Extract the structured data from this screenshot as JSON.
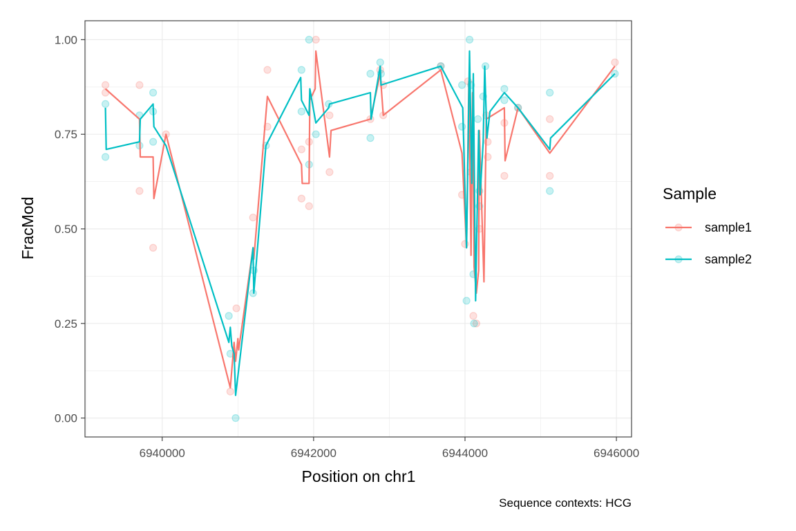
{
  "chart_data": {
    "type": "line",
    "xlabel": "Position on chr1",
    "ylabel": "FracMod",
    "caption": "Sequence contexts: HCG",
    "xlim": [
      6938980,
      6946200
    ],
    "ylim": [
      -0.05,
      1.05
    ],
    "x_ticks": [
      6940000,
      6942000,
      6944000,
      6946000
    ],
    "x_tick_labels": [
      "6940000",
      "6942000",
      "6944000",
      "6946000"
    ],
    "y_ticks": [
      0,
      0.25,
      0.5,
      0.75,
      1.0
    ],
    "y_tick_labels": [
      "0.00",
      "0.25",
      "0.50",
      "0.75",
      "1.00"
    ],
    "grid": true,
    "legend": {
      "title": "Sample",
      "placement": "right"
    },
    "series": [
      {
        "name": "sample1",
        "color": "#F8766D",
        "line": [
          [
            6939250,
            0.87
          ],
          [
            6939700,
            0.79
          ],
          [
            6939710,
            0.69
          ],
          [
            6939880,
            0.69
          ],
          [
            6939890,
            0.58
          ],
          [
            6940050,
            0.75
          ],
          [
            6940900,
            0.08
          ],
          [
            6940950,
            0.2
          ],
          [
            6940970,
            0.15
          ],
          [
            6941000,
            0.21
          ],
          [
            6941010,
            0.18
          ],
          [
            6941200,
            0.45
          ],
          [
            6941210,
            0.42
          ],
          [
            6941390,
            0.85
          ],
          [
            6941840,
            0.67
          ],
          [
            6941850,
            0.62
          ],
          [
            6941940,
            0.62
          ],
          [
            6941950,
            0.84
          ],
          [
            6942020,
            0.87
          ],
          [
            6942030,
            0.97
          ],
          [
            6942210,
            0.69
          ],
          [
            6942230,
            0.76
          ],
          [
            6942750,
            0.79
          ],
          [
            6942880,
            0.91
          ],
          [
            6942920,
            0.8
          ],
          [
            6943680,
            0.92
          ],
          [
            6943960,
            0.7
          ],
          [
            6944020,
            0.45
          ],
          [
            6944050,
            0.89
          ],
          [
            6944080,
            0.43
          ],
          [
            6944100,
            0.86
          ],
          [
            6944120,
            0.4
          ],
          [
            6944150,
            0.33
          ],
          [
            6944180,
            0.39
          ],
          [
            6944190,
            0.76
          ],
          [
            6944250,
            0.36
          ],
          [
            6944280,
            0.79
          ],
          [
            6944520,
            0.82
          ],
          [
            6944530,
            0.68
          ],
          [
            6944700,
            0.82
          ],
          [
            6945120,
            0.7
          ],
          [
            6945980,
            0.93
          ]
        ],
        "points": [
          [
            6939250,
            0.88
          ],
          [
            6939250,
            0.86
          ],
          [
            6939700,
            0.88
          ],
          [
            6939700,
            0.6
          ],
          [
            6939880,
            0.45
          ],
          [
            6940050,
            0.75
          ],
          [
            6940900,
            0.07
          ],
          [
            6940980,
            0.29
          ],
          [
            6941200,
            0.53
          ],
          [
            6941390,
            0.92
          ],
          [
            6941390,
            0.77
          ],
          [
            6941840,
            0.71
          ],
          [
            6941840,
            0.58
          ],
          [
            6941940,
            0.73
          ],
          [
            6941940,
            0.56
          ],
          [
            6942030,
            1.0
          ],
          [
            6942210,
            0.8
          ],
          [
            6942210,
            0.65
          ],
          [
            6942750,
            0.79
          ],
          [
            6942880,
            0.92
          ],
          [
            6942920,
            0.88
          ],
          [
            6942920,
            0.8
          ],
          [
            6943680,
            0.93
          ],
          [
            6943960,
            0.59
          ],
          [
            6944000,
            0.46
          ],
          [
            6944040,
            0.89
          ],
          [
            6944080,
            0.65
          ],
          [
            6944110,
            0.27
          ],
          [
            6944150,
            0.25
          ],
          [
            6944190,
            0.5
          ],
          [
            6944280,
            0.8
          ],
          [
            6944300,
            0.69
          ],
          [
            6944300,
            0.73
          ],
          [
            6944520,
            0.78
          ],
          [
            6944520,
            0.64
          ],
          [
            6944700,
            0.82
          ],
          [
            6945120,
            0.79
          ],
          [
            6945120,
            0.64
          ],
          [
            6945980,
            0.94
          ]
        ]
      },
      {
        "name": "sample2",
        "color": "#00BFC4",
        "line": [
          [
            6939250,
            0.82
          ],
          [
            6939260,
            0.71
          ],
          [
            6939700,
            0.73
          ],
          [
            6939710,
            0.79
          ],
          [
            6939880,
            0.83
          ],
          [
            6939890,
            0.77
          ],
          [
            6940050,
            0.72
          ],
          [
            6940880,
            0.2
          ],
          [
            6940900,
            0.24
          ],
          [
            6940920,
            0.19
          ],
          [
            6940950,
            0.17
          ],
          [
            6940970,
            0.06
          ],
          [
            6941200,
            0.45
          ],
          [
            6941210,
            0.33
          ],
          [
            6941370,
            0.72
          ],
          [
            6941830,
            0.9
          ],
          [
            6941840,
            0.84
          ],
          [
            6941940,
            0.8
          ],
          [
            6941950,
            0.87
          ],
          [
            6942030,
            0.78
          ],
          [
            6942200,
            0.82
          ],
          [
            6942210,
            0.83
          ],
          [
            6942750,
            0.86
          ],
          [
            6942760,
            0.79
          ],
          [
            6942880,
            0.93
          ],
          [
            6942890,
            0.88
          ],
          [
            6943680,
            0.93
          ],
          [
            6943970,
            0.82
          ],
          [
            6944020,
            0.45
          ],
          [
            6944060,
            0.97
          ],
          [
            6944090,
            0.62
          ],
          [
            6944110,
            0.91
          ],
          [
            6944140,
            0.31
          ],
          [
            6944180,
            0.76
          ],
          [
            6944200,
            0.59
          ],
          [
            6944240,
            0.73
          ],
          [
            6944260,
            0.93
          ],
          [
            6944290,
            0.74
          ],
          [
            6944330,
            0.81
          ],
          [
            6944520,
            0.86
          ],
          [
            6944700,
            0.82
          ],
          [
            6945120,
            0.71
          ],
          [
            6945130,
            0.74
          ],
          [
            6945980,
            0.91
          ]
        ],
        "points": [
          [
            6939250,
            0.83
          ],
          [
            6939250,
            0.69
          ],
          [
            6939700,
            0.8
          ],
          [
            6939700,
            0.72
          ],
          [
            6939880,
            0.86
          ],
          [
            6939880,
            0.73
          ],
          [
            6939880,
            0.81
          ],
          [
            6940880,
            0.27
          ],
          [
            6940900,
            0.17
          ],
          [
            6940970,
            0.0
          ],
          [
            6941200,
            0.33
          ],
          [
            6941210,
            0.39
          ],
          [
            6941370,
            0.72
          ],
          [
            6941840,
            0.92
          ],
          [
            6941840,
            0.81
          ],
          [
            6941940,
            1.0
          ],
          [
            6941940,
            0.67
          ],
          [
            6942030,
            0.75
          ],
          [
            6942200,
            0.83
          ],
          [
            6942750,
            0.91
          ],
          [
            6942750,
            0.74
          ],
          [
            6942880,
            0.94
          ],
          [
            6942890,
            0.91
          ],
          [
            6943680,
            0.93
          ],
          [
            6943960,
            0.88
          ],
          [
            6943960,
            0.77
          ],
          [
            6944020,
            0.31
          ],
          [
            6944060,
            1.0
          ],
          [
            6944080,
            0.88
          ],
          [
            6944110,
            0.38
          ],
          [
            6944120,
            0.25
          ],
          [
            6944170,
            0.79
          ],
          [
            6944190,
            0.6
          ],
          [
            6944190,
            0.56
          ],
          [
            6944240,
            0.85
          ],
          [
            6944270,
            0.93
          ],
          [
            6944520,
            0.87
          ],
          [
            6944520,
            0.84
          ],
          [
            6944700,
            0.82
          ],
          [
            6945120,
            0.86
          ],
          [
            6945120,
            0.6
          ],
          [
            6945980,
            0.91
          ]
        ]
      }
    ]
  }
}
